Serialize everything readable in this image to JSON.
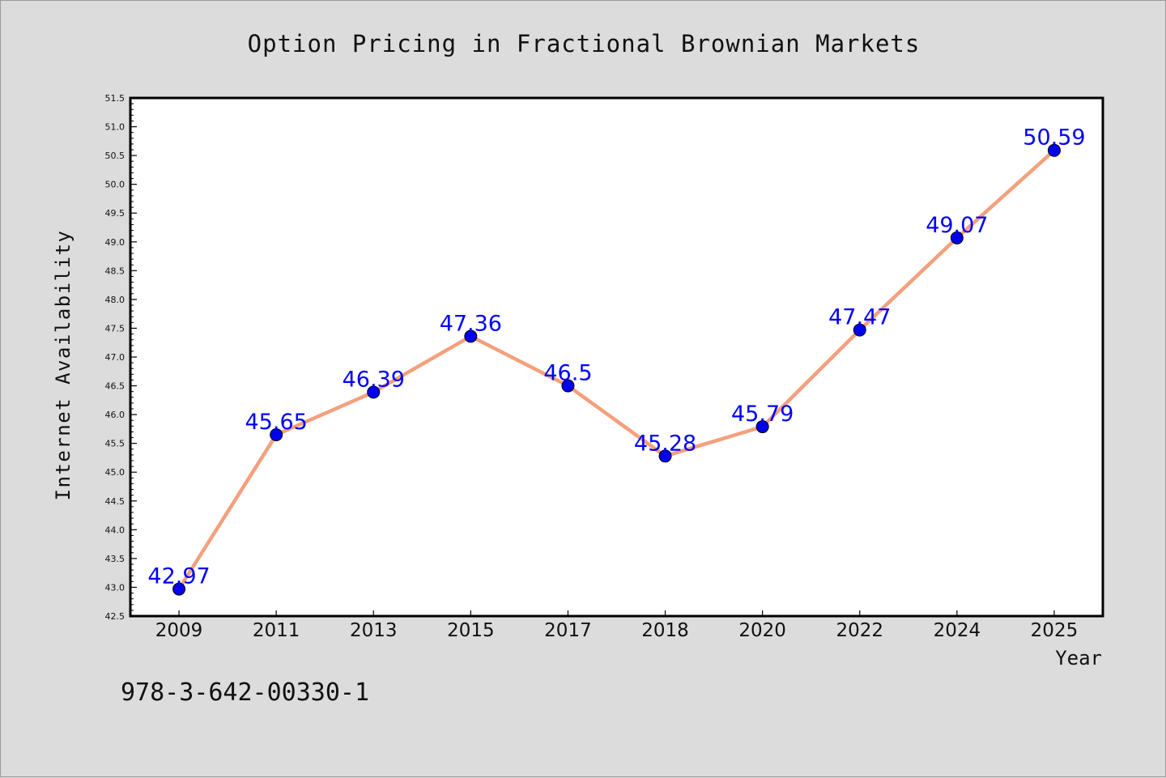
{
  "chart_data": {
    "type": "line",
    "title": "Option Pricing in Fractional Brownian Markets",
    "xlabel": "Year",
    "ylabel": "Internet Availability",
    "categories": [
      "2009",
      "2011",
      "2013",
      "2015",
      "2017",
      "2018",
      "2020",
      "2022",
      "2024",
      "2025"
    ],
    "series": [
      {
        "values": [
          42.97,
          45.65,
          46.39,
          47.36,
          46.5,
          45.28,
          45.79,
          47.47,
          49.07,
          50.59
        ],
        "labels": [
          "42.97",
          "45.65",
          "46.39",
          "47.36",
          "46.5",
          "45.28",
          "45.79",
          "47.47",
          "49.07",
          "50.59"
        ]
      }
    ],
    "ylim": [
      42.5,
      51.5
    ],
    "yticks": [
      "42.5",
      "43.0",
      "43.5",
      "44.0",
      "44.5",
      "45.0",
      "45.5",
      "46.0",
      "46.5",
      "47.0",
      "47.5",
      "48.0",
      "48.5",
      "49.0",
      "49.5",
      "50.0",
      "50.5",
      "51.0",
      "51.5"
    ],
    "grid": false,
    "line_color": "#f4a07c",
    "marker_color": "#0000ee",
    "label_color": "#0000ff"
  },
  "annotation": "978-3-642-00330-1"
}
